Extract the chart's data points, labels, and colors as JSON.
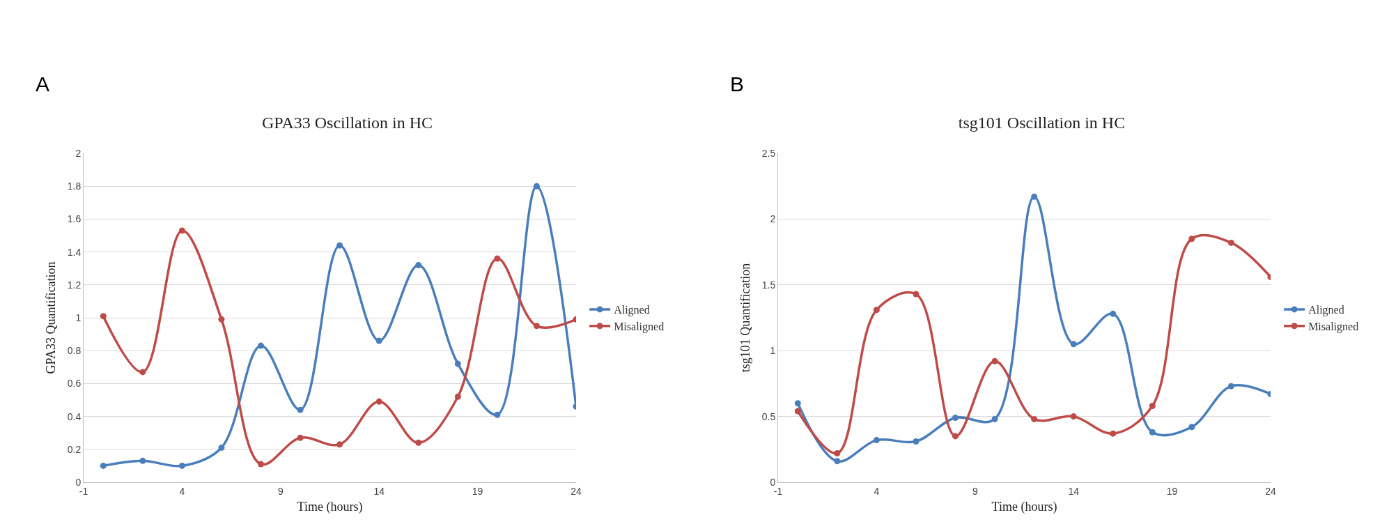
{
  "chart_data": [
    {
      "type": "line",
      "title": "GPA33 Oscillation in HC",
      "xlabel": "Time (hours)",
      "ylabel": "GPA33 Quantification",
      "annotations": [
        "A"
      ],
      "x": [
        0,
        2,
        4,
        6,
        8,
        10,
        12,
        14,
        16,
        18,
        20,
        22,
        24
      ],
      "series": [
        {
          "name": "Aligned",
          "color": "#4a7ebb",
          "values": [
            0.1,
            0.13,
            0.1,
            0.21,
            0.83,
            0.44,
            1.44,
            0.86,
            1.32,
            0.72,
            0.41,
            1.8,
            0.46
          ]
        },
        {
          "name": "Misaligned",
          "color": "#be4b48",
          "values": [
            1.01,
            0.67,
            1.53,
            0.99,
            0.11,
            0.27,
            0.23,
            0.49,
            0.24,
            0.52,
            1.36,
            0.95,
            0.99
          ]
        }
      ],
      "xlim": [
        -1,
        24
      ],
      "xticks": [
        -1,
        4,
        9,
        14,
        19,
        24
      ],
      "ylim": [
        0,
        2
      ],
      "yticks": [
        0,
        0.2,
        0.4,
        0.6,
        0.8,
        1,
        1.2,
        1.4,
        1.6,
        1.8,
        2
      ],
      "grid": "y",
      "legend": "right",
      "marker": "circle",
      "line_style": "solid"
    },
    {
      "type": "line",
      "title": "tsg101 Oscillation in HC",
      "xlabel": "Time (hours)",
      "ylabel": "tsg101 Quantification",
      "annotations": [
        "B"
      ],
      "x": [
        0,
        2,
        4,
        6,
        8,
        10,
        12,
        14,
        16,
        18,
        20,
        22,
        24
      ],
      "series": [
        {
          "name": "Aligned",
          "color": "#4a7ebb",
          "values": [
            0.6,
            0.16,
            0.32,
            0.31,
            0.49,
            0.48,
            2.17,
            1.05,
            1.28,
            0.38,
            0.42,
            0.73,
            0.67
          ]
        },
        {
          "name": "Misaligned",
          "color": "#be4b48",
          "values": [
            0.54,
            0.22,
            1.31,
            1.43,
            0.35,
            0.92,
            0.48,
            0.5,
            0.37,
            0.58,
            1.85,
            1.82,
            1.56
          ]
        }
      ],
      "xlim": [
        -1,
        24
      ],
      "xticks": [
        -1,
        4,
        9,
        14,
        19,
        24
      ],
      "ylim": [
        0,
        2.5
      ],
      "yticks": [
        0,
        0.5,
        1,
        1.5,
        2,
        2.5
      ],
      "grid": "y",
      "legend": "right",
      "marker": "circle",
      "line_style": "solid"
    }
  ]
}
